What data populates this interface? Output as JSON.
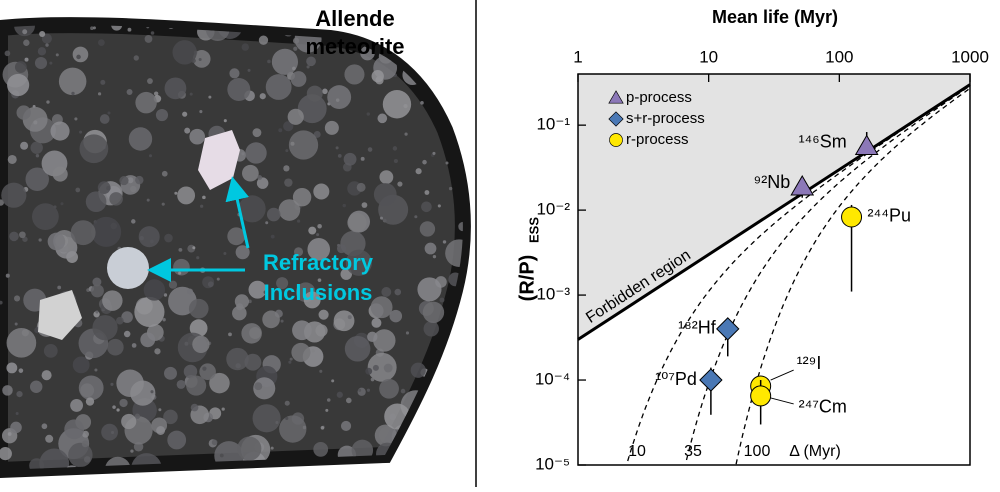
{
  "photo": {
    "title_lines": [
      "Allende",
      "meteorite"
    ],
    "annotation_lines": [
      "Refractory",
      "Inclusions"
    ]
  },
  "chart_data": {
    "type": "scatter",
    "title": "Mean life (Myr)",
    "ylabel": "(R/P)",
    "ylabel_sub": "ESS",
    "xlog": true,
    "ylog": true,
    "xlim": [
      1,
      1000
    ],
    "ylim": [
      1e-05,
      0.4
    ],
    "xticks": [
      1,
      10,
      100,
      1000
    ],
    "yticks": [
      {
        "value": 0.1,
        "label": "10⁻¹"
      },
      {
        "value": 0.01,
        "label": "10⁻²"
      },
      {
        "value": 0.001,
        "label": "10⁻³"
      },
      {
        "value": 0.0001,
        "label": "10⁻⁴"
      },
      {
        "value": 1e-05,
        "label": "10⁻⁵"
      }
    ],
    "legend": "upper left",
    "forbidden_line": {
      "label": "Forbidden region",
      "x": [
        1,
        1000
      ],
      "y": [
        0.0003,
        0.3
      ],
      "fill": "#e3e3e3"
    },
    "decay_curves": {
      "label": "Δ (Myr)",
      "curves": [
        {
          "label": "10",
          "delta": 10
        },
        {
          "label": "35",
          "delta": 35
        },
        {
          "label": "100",
          "delta": 100
        }
      ]
    },
    "series": [
      {
        "name": "p-process",
        "color": "#8c78b8",
        "marker": "triangle",
        "x": [
          52,
          162
        ],
        "values": [
          0.0187,
          0.056
        ],
        "err_low": [
          0.014,
          0.048
        ],
        "err_high": [
          0.022,
          0.083
        ],
        "point_labels": [
          "⁹²Nb",
          "¹⁴⁶Sm"
        ]
      },
      {
        "name": "s+r-process",
        "color": "#4a78b5",
        "marker": "diamond",
        "x": [
          14,
          10.4
        ],
        "values": [
          0.0004,
          0.0001
        ],
        "err_low": [
          0.00019,
          3.9e-05
        ],
        "err_high": [
          0.00054,
          0.00014
        ],
        "point_labels": [
          "¹⁸²Hf",
          "¹⁰⁷Pd"
        ]
      },
      {
        "name": "r-process",
        "color": "#ffe800",
        "marker": "circle",
        "x": [
          124,
          25,
          25
        ],
        "values": [
          0.0083,
          8.5e-05,
          6.5e-05
        ],
        "err_low": [
          0.0011,
          7.5e-05,
          3e-05
        ],
        "err_high": [
          0.0115,
          0.0001,
          0.0001
        ],
        "point_labels": [
          "²⁴⁴Pu",
          "¹²⁹I",
          "²⁴⁷Cm"
        ]
      }
    ]
  }
}
